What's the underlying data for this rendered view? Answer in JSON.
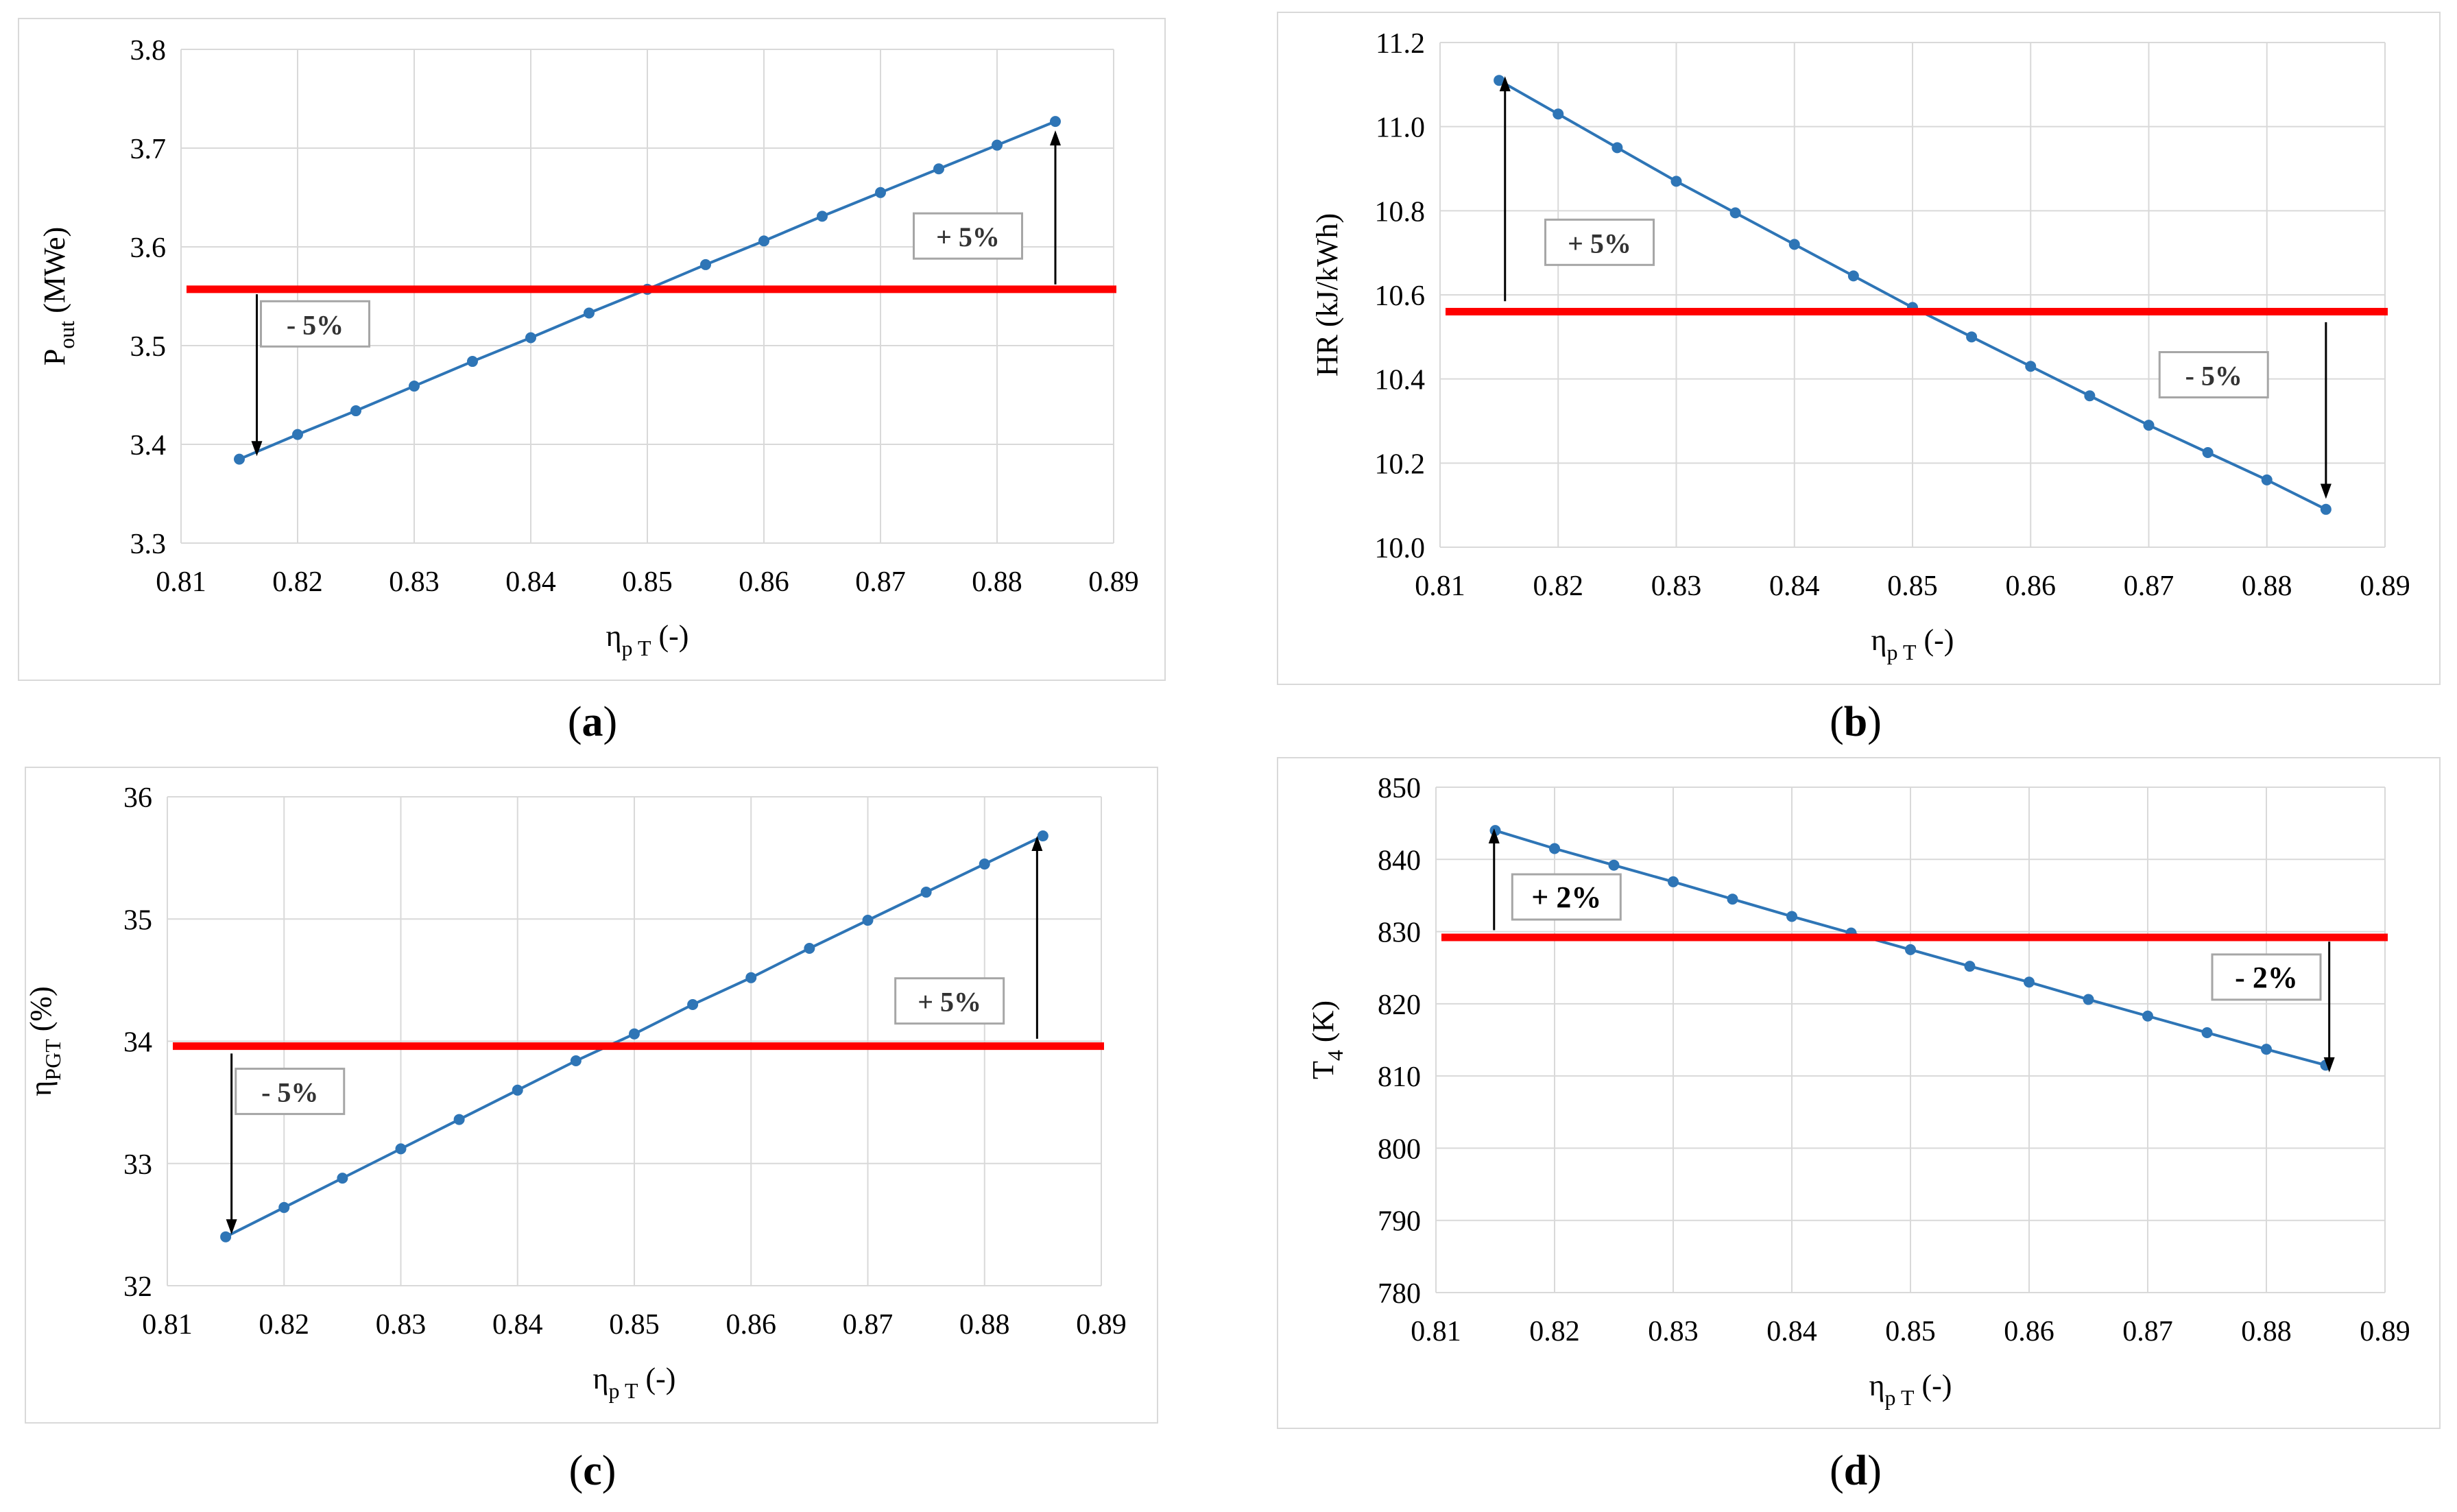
{
  "colors": {
    "series": "#2e75b6",
    "reference": "#ff0000",
    "grid": "#d9d9d9",
    "box_border": "#a6a6a6"
  },
  "chart_data": [
    {
      "id": "a",
      "type": "line",
      "panel_label": "a",
      "xlabel": {
        "main": "η",
        "sub": "p T",
        "suffix": " (-)"
      },
      "ylabel": {
        "main": "P",
        "sub": "out",
        "suffix": " (MWe)"
      },
      "xlim": [
        0.81,
        0.89
      ],
      "ylim": [
        3.3,
        3.8
      ],
      "x_ticks": [
        "0.81",
        "0.82",
        "0.83",
        "0.84",
        "0.85",
        "0.86",
        "0.87",
        "0.88",
        "0.89"
      ],
      "y_ticks": [
        "3.3",
        "3.4",
        "3.5",
        "3.6",
        "3.7",
        "3.8"
      ],
      "x": [
        0.815,
        0.82,
        0.825,
        0.83,
        0.835,
        0.84,
        0.845,
        0.85,
        0.855,
        0.86,
        0.865,
        0.87,
        0.875,
        0.88,
        0.885
      ],
      "y": [
        3.385,
        3.41,
        3.434,
        3.459,
        3.484,
        3.508,
        3.533,
        3.557,
        3.582,
        3.606,
        3.631,
        3.655,
        3.679,
        3.703,
        3.727
      ],
      "reference_line": 3.557,
      "annotations": [
        {
          "text": "- 5%",
          "arrow_x": 0.8165,
          "arrow_from": 3.552,
          "arrow_to": 3.388,
          "box_x": 0.8215,
          "box_y": 3.522,
          "bold": false
        },
        {
          "text": "+ 5%",
          "arrow_x": 0.885,
          "arrow_from": 3.562,
          "arrow_to": 3.718,
          "box_x": 0.8775,
          "box_y": 3.611,
          "bold": false
        }
      ]
    },
    {
      "id": "b",
      "type": "line",
      "panel_label": "b",
      "xlabel": {
        "main": "η",
        "sub": "p T",
        "suffix": " (-)"
      },
      "ylabel": {
        "main": "HR (kJ/kWh)",
        "sub": "",
        "suffix": ""
      },
      "xlim": [
        0.81,
        0.89
      ],
      "ylim": [
        10.0,
        11.2
      ],
      "x_ticks": [
        "0.81",
        "0.82",
        "0.83",
        "0.84",
        "0.85",
        "0.86",
        "0.87",
        "0.88",
        "0.89"
      ],
      "y_ticks": [
        "10.0",
        "10.2",
        "10.4",
        "10.6",
        "10.8",
        "11.0",
        "11.2"
      ],
      "x": [
        0.815,
        0.82,
        0.825,
        0.83,
        0.835,
        0.84,
        0.845,
        0.85,
        0.855,
        0.86,
        0.865,
        0.87,
        0.875,
        0.88,
        0.885
      ],
      "y": [
        11.11,
        11.03,
        10.95,
        10.87,
        10.795,
        10.72,
        10.645,
        10.57,
        10.5,
        10.43,
        10.36,
        10.29,
        10.225,
        10.16,
        10.09
      ],
      "reference_line": 10.56,
      "annotations": [
        {
          "text": "+ 5%",
          "arrow_x": 0.8155,
          "arrow_from": 10.585,
          "arrow_to": 11.12,
          "box_x": 0.8235,
          "box_y": 10.725,
          "bold": false
        },
        {
          "text": "- 5%",
          "arrow_x": 0.885,
          "arrow_from": 10.535,
          "arrow_to": 10.115,
          "box_x": 0.8755,
          "box_y": 10.41,
          "bold": false
        }
      ]
    },
    {
      "id": "c",
      "type": "line",
      "panel_label": "c",
      "xlabel": {
        "main": "η",
        "sub": "p T",
        "suffix": " (-)"
      },
      "ylabel": {
        "main": "η",
        "sub": "PGT",
        "suffix": " (%)"
      },
      "xlim": [
        0.81,
        0.89
      ],
      "ylim": [
        32,
        36
      ],
      "x_ticks": [
        "0.81",
        "0.82",
        "0.83",
        "0.84",
        "0.85",
        "0.86",
        "0.87",
        "0.88",
        "0.89"
      ],
      "y_ticks": [
        "32",
        "33",
        "34",
        "35",
        "36"
      ],
      "x": [
        0.815,
        0.82,
        0.825,
        0.83,
        0.835,
        0.84,
        0.845,
        0.85,
        0.855,
        0.86,
        0.865,
        0.87,
        0.875,
        0.88,
        0.885
      ],
      "y": [
        32.4,
        32.64,
        32.88,
        33.12,
        33.36,
        33.6,
        33.84,
        34.06,
        34.3,
        34.52,
        34.76,
        34.99,
        35.22,
        35.45,
        35.68
      ],
      "reference_line": 33.96,
      "annotations": [
        {
          "text": "- 5%",
          "arrow_x": 0.8155,
          "arrow_from": 33.9,
          "arrow_to": 32.42,
          "box_x": 0.8205,
          "box_y": 33.59,
          "bold": false
        },
        {
          "text": "+ 5%",
          "arrow_x": 0.8845,
          "arrow_from": 34.02,
          "arrow_to": 35.68,
          "box_x": 0.877,
          "box_y": 34.33,
          "bold": false
        }
      ]
    },
    {
      "id": "d",
      "type": "line",
      "panel_label": "d",
      "xlabel": {
        "main": "η",
        "sub": "p T",
        "suffix": " (-)"
      },
      "ylabel": {
        "main": "T",
        "sub": "4",
        "suffix": " (K)"
      },
      "xlim": [
        0.81,
        0.89
      ],
      "ylim": [
        780,
        850
      ],
      "x_ticks": [
        "0.81",
        "0.82",
        "0.83",
        "0.84",
        "0.85",
        "0.86",
        "0.87",
        "0.88",
        "0.89"
      ],
      "y_ticks": [
        "780",
        "790",
        "800",
        "810",
        "820",
        "830",
        "840",
        "850"
      ],
      "x": [
        0.815,
        0.82,
        0.825,
        0.83,
        0.835,
        0.84,
        0.845,
        0.85,
        0.855,
        0.86,
        0.865,
        0.87,
        0.875,
        0.88,
        0.885
      ],
      "y": [
        844,
        841.5,
        839.2,
        836.9,
        834.5,
        832.1,
        829.8,
        827.5,
        825.2,
        823.0,
        820.6,
        818.3,
        816.0,
        813.7,
        811.5
      ],
      "reference_line": 829.2,
      "annotations": [
        {
          "text": "+ 2%",
          "arrow_x": 0.8149,
          "arrow_from": 830.2,
          "arrow_to": 844.3,
          "box_x": 0.821,
          "box_y": 834.8,
          "bold": true
        },
        {
          "text": "- 2%",
          "arrow_x": 0.8853,
          "arrow_from": 828.6,
          "arrow_to": 810.5,
          "box_x": 0.88,
          "box_y": 823.7,
          "bold": true
        }
      ]
    }
  ]
}
